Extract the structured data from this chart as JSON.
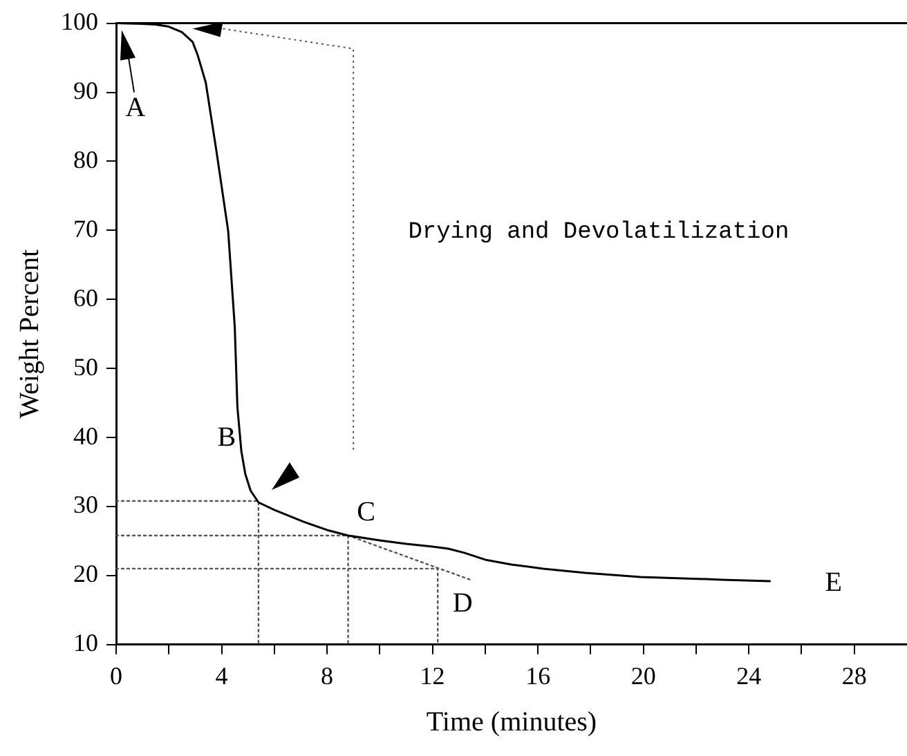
{
  "chart_data": {
    "type": "line",
    "xlabel": "Time (minutes)",
    "ylabel": "Weight Percent",
    "xlim": [
      0,
      30
    ],
    "ylim": [
      10,
      100
    ],
    "xticks": [
      0,
      {
        "value": 2,
        "label": null
      },
      4,
      {
        "value": 6,
        "label": null
      },
      8,
      {
        "value": 10,
        "label": null
      },
      12,
      {
        "value": 14,
        "label": null
      },
      16,
      {
        "value": 18,
        "label": null
      },
      20,
      {
        "value": 22,
        "label": null
      },
      24,
      {
        "value": 26,
        "label": null
      },
      28
    ],
    "yticks": [
      10,
      20,
      30,
      40,
      50,
      60,
      70,
      80,
      90,
      100
    ],
    "grid": false,
    "legend": false,
    "marker": "none",
    "series": [
      {
        "color": "#000000",
        "line_style": "solid",
        "x": [
          0,
          1,
          1.5,
          2,
          2.5,
          2.9,
          3.1,
          3.4,
          3.8,
          4.25,
          4.5,
          4.6,
          4.75,
          4.9,
          5.1,
          5.4,
          6,
          7.1,
          8,
          8.8,
          10,
          11,
          12,
          12.6,
          13.2,
          14,
          15,
          16.2,
          17.8,
          19.9,
          21.5,
          23,
          24.8
        ],
        "values": [
          100,
          99.9,
          99.8,
          99.5,
          98.7,
          97.3,
          95.3,
          91.4,
          81.6,
          69.9,
          56,
          44.4,
          38,
          34.7,
          32.3,
          30.6,
          29.5,
          27.8,
          26.6,
          25.8,
          25.1,
          24.6,
          24.2,
          23.9,
          23.3,
          22.3,
          21.6,
          21,
          20.4,
          19.8,
          19.6,
          19.4,
          19.2
        ]
      },
      {
        "color": "#555555",
        "line_style": "dotted",
        "x": [
          0,
          5.4,
          5.4
        ],
        "values": [
          30.8,
          30.8,
          10
        ]
      },
      {
        "color": "#555555",
        "line_style": "dotted",
        "x": [
          0,
          8.8,
          8.8
        ],
        "values": [
          25.8,
          25.8,
          10
        ]
      },
      {
        "color": "#555555",
        "line_style": "dotted",
        "x": [
          0,
          12.2,
          12.2
        ],
        "values": [
          21,
          21,
          10
        ]
      },
      {
        "color": "#555555",
        "line_style": "dotted",
        "x": [
          8.8,
          13.5
        ],
        "values": [
          25.8,
          19.3
        ]
      }
    ],
    "annotations": [
      {
        "text": "A",
        "x": 0,
        "y": 100
      },
      {
        "text": "B",
        "x": 5.4,
        "y": 30.8
      },
      {
        "text": "C",
        "x": 8.8,
        "y": 25.8
      },
      {
        "text": "D",
        "x": 12.2,
        "y": 21
      },
      {
        "text": "E",
        "x": 24.8,
        "y": 19.2
      },
      "Drying and Devolatilization"
    ]
  }
}
